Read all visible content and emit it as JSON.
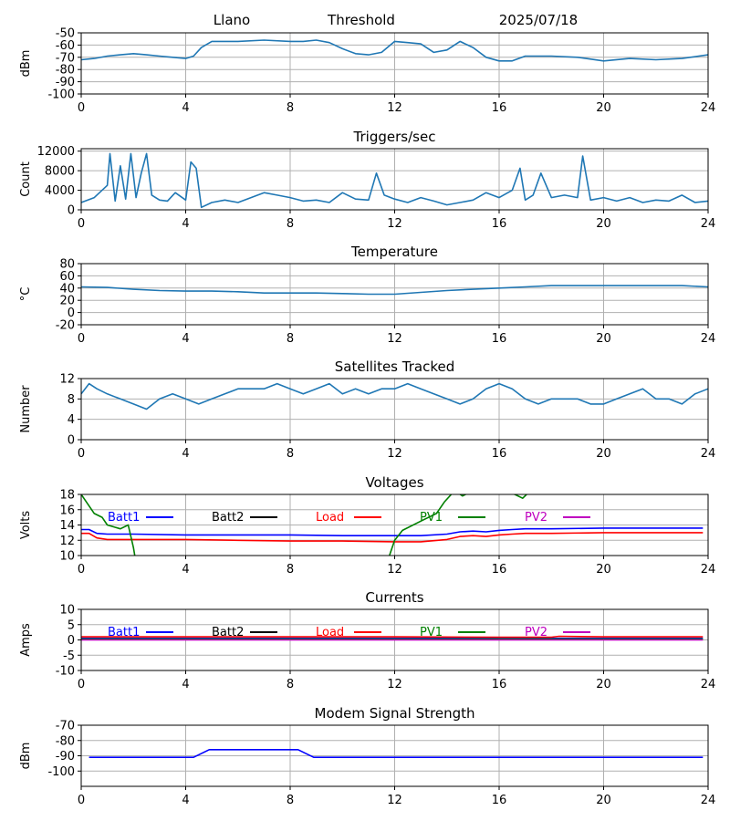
{
  "header": {
    "site": "Llano",
    "mode": "Threshold",
    "date": "2025/07/18"
  },
  "x_ticks": [
    "0",
    "4",
    "8",
    "12",
    "16",
    "20",
    "24"
  ],
  "colors": {
    "default_line": "#1f77b4",
    "grid": "#b0b0b0",
    "blue": "#0000ff",
    "black": "#000000",
    "red": "#ff0000",
    "green": "#008000",
    "magenta": "#bf00bf"
  },
  "chart_data": [
    {
      "type": "line",
      "title": "",
      "ylabel": "dBm",
      "ylim": [
        -100,
        -50
      ],
      "yticks": [
        "-50",
        "-60",
        "-70",
        "-80",
        "-90",
        "-100"
      ],
      "xlim": [
        0,
        24
      ],
      "series": [
        {
          "color": "#1f77b4",
          "x": [
            0,
            0.5,
            1,
            1.5,
            2,
            2.5,
            3,
            3.5,
            4,
            4.3,
            4.6,
            5,
            6,
            7,
            8,
            8.5,
            9,
            9.5,
            10,
            10.5,
            11,
            11.5,
            12,
            12.5,
            13,
            13.5,
            14,
            14.5,
            15,
            15.5,
            16,
            16.5,
            17,
            18,
            19,
            20,
            21,
            22,
            23,
            24
          ],
          "y": [
            -72,
            -71,
            -69,
            -68,
            -67,
            -68,
            -69,
            -70,
            -71,
            -69,
            -62,
            -57,
            -57,
            -56,
            -57,
            -57,
            -56,
            -58,
            -63,
            -67,
            -68,
            -66,
            -57,
            -58,
            -59,
            -66,
            -64,
            -57,
            -62,
            -70,
            -73,
            -73,
            -69,
            -69,
            -70,
            -73,
            -71,
            -72,
            -71,
            -68
          ]
        }
      ]
    },
    {
      "type": "line",
      "title": "Triggers/sec",
      "ylabel": "Count",
      "ylim": [
        0,
        12500
      ],
      "yticks": [
        "0",
        "4000",
        "8000",
        "12000"
      ],
      "xlim": [
        0,
        24
      ],
      "series": [
        {
          "color": "#1f77b4",
          "x": [
            0,
            0.5,
            1,
            1.1,
            1.3,
            1.5,
            1.7,
            1.9,
            2.1,
            2.3,
            2.5,
            2.7,
            3,
            3.3,
            3.6,
            4,
            4.2,
            4.4,
            4.6,
            5,
            5.5,
            6,
            6.5,
            7,
            7.5,
            8,
            8.5,
            9,
            9.5,
            10,
            10.5,
            11,
            11.3,
            11.6,
            12,
            12.5,
            13,
            13.5,
            14,
            14.5,
            15,
            15.5,
            16,
            16.5,
            16.8,
            17,
            17.3,
            17.6,
            18,
            18.5,
            19,
            19.2,
            19.5,
            20,
            20.5,
            21,
            21.5,
            22,
            22.5,
            23,
            23.5,
            24
          ],
          "y": [
            1500,
            2500,
            5000,
            11500,
            1800,
            9000,
            2200,
            11500,
            2500,
            7500,
            11500,
            3000,
            2000,
            1800,
            3500,
            2000,
            9800,
            8500,
            500,
            1500,
            2000,
            1500,
            2500,
            3500,
            3000,
            2500,
            1800,
            2000,
            1500,
            3500,
            2200,
            2000,
            7500,
            3000,
            2200,
            1500,
            2500,
            1800,
            1000,
            1500,
            2000,
            3500,
            2500,
            4000,
            8500,
            2000,
            3000,
            7500,
            2500,
            3000,
            2500,
            11000,
            2000,
            2500,
            1800,
            2500,
            1500,
            2000,
            1800,
            3000,
            1500,
            1800
          ]
        }
      ]
    },
    {
      "type": "line",
      "title": "Temperature",
      "ylabel": "°C",
      "ylim": [
        -20,
        80
      ],
      "yticks": [
        "80",
        "60",
        "40",
        "20",
        "0",
        "-20"
      ],
      "xlim": [
        0,
        24
      ],
      "series": [
        {
          "color": "#1f77b4",
          "x": [
            0,
            1,
            2,
            3,
            4,
            5,
            6,
            7,
            8,
            9,
            10,
            11,
            12,
            13,
            14,
            15,
            16,
            17,
            18,
            19,
            20,
            21,
            22,
            23,
            24
          ],
          "y": [
            42,
            41,
            38,
            36,
            35,
            35,
            34,
            32,
            32,
            32,
            31,
            30,
            30,
            33,
            36,
            38,
            40,
            42,
            44,
            44,
            44,
            44,
            44,
            44,
            42
          ]
        }
      ]
    },
    {
      "type": "line",
      "title": "Satellites Tracked",
      "ylabel": "Number",
      "ylim": [
        0,
        12
      ],
      "yticks": [
        "0",
        "4",
        "8",
        "12"
      ],
      "xlim": [
        0,
        24
      ],
      "series": [
        {
          "color": "#1f77b4",
          "x": [
            0,
            0.3,
            0.6,
            1,
            1.5,
            2,
            2.5,
            3,
            3.5,
            4,
            4.5,
            5,
            5.5,
            6,
            6.5,
            7,
            7.5,
            8,
            8.5,
            9,
            9.5,
            10,
            10.5,
            11,
            11.5,
            12,
            12.5,
            13,
            13.5,
            14,
            14.5,
            15,
            15.5,
            16,
            16.5,
            17,
            17.5,
            18,
            18.5,
            19,
            19.5,
            20,
            20.5,
            21,
            21.5,
            22,
            22.5,
            23,
            23.5,
            24
          ],
          "y": [
            9,
            11,
            10,
            9,
            8,
            7,
            6,
            8,
            9,
            8,
            7,
            8,
            9,
            10,
            10,
            10,
            11,
            10,
            9,
            10,
            11,
            9,
            10,
            9,
            10,
            10,
            11,
            10,
            9,
            8,
            7,
            8,
            10,
            11,
            10,
            8,
            7,
            8,
            8,
            8,
            7,
            7,
            8,
            9,
            10,
            8,
            8,
            7,
            9,
            10
          ]
        }
      ]
    },
    {
      "type": "line",
      "title": "Voltages",
      "ylabel": "Volts",
      "ylim": [
        10,
        18
      ],
      "yticks": [
        "10",
        "12",
        "14",
        "16",
        "18"
      ],
      "xlim": [
        0,
        24
      ],
      "legend": [
        "Batt1",
        "Batt2",
        "Load",
        "PV1",
        "PV2"
      ],
      "series": [
        {
          "name": "Batt1",
          "color": "#0000ff",
          "x": [
            0,
            0.3,
            0.6,
            1,
            2,
            4,
            6,
            8,
            10,
            12,
            13,
            14,
            14.5,
            15,
            15.5,
            16,
            16.5,
            17,
            18,
            20,
            22,
            23.8
          ],
          "y": [
            13.4,
            13.4,
            12.9,
            12.8,
            12.8,
            12.7,
            12.7,
            12.7,
            12.6,
            12.6,
            12.6,
            12.8,
            13.1,
            13.2,
            13.1,
            13.3,
            13.4,
            13.5,
            13.5,
            13.6,
            13.6,
            13.6
          ]
        },
        {
          "name": "Load",
          "color": "#ff0000",
          "x": [
            0,
            0.3,
            0.6,
            1,
            2,
            4,
            6,
            8,
            10,
            12,
            13,
            14,
            14.5,
            15,
            15.5,
            16,
            16.5,
            17,
            18,
            20,
            22,
            23.8
          ],
          "y": [
            12.9,
            12.9,
            12.3,
            12.1,
            12.1,
            12.1,
            12.0,
            11.9,
            11.9,
            11.8,
            11.8,
            12.1,
            12.5,
            12.6,
            12.5,
            12.7,
            12.8,
            12.9,
            12.9,
            13.0,
            13.0,
            13.0
          ]
        },
        {
          "name": "PV1",
          "color": "#008000",
          "x": [
            0,
            0.5,
            0.8,
            1,
            1.5,
            1.8,
            2.0,
            2.1,
            11.7,
            12.0,
            12.3,
            13,
            13.6,
            13.9,
            14.3,
            14.6,
            15,
            16,
            16.6,
            16.9,
            17.2
          ],
          "y": [
            18,
            15.5,
            15,
            14,
            13.5,
            14,
            11,
            9,
            9,
            12,
            13.3,
            14.5,
            15.5,
            17,
            18.5,
            17.8,
            18.5,
            18.5,
            18,
            17.5,
            18.5
          ]
        },
        {
          "name": "Batt2",
          "color": "#000000",
          "x": [],
          "y": []
        },
        {
          "name": "PV2",
          "color": "#bf00bf",
          "x": [],
          "y": []
        }
      ]
    },
    {
      "type": "line",
      "title": "Currents",
      "ylabel": "Amps",
      "ylim": [
        -10,
        10
      ],
      "yticks": [
        "10",
        "5",
        "0",
        "-5",
        "-10"
      ],
      "xlim": [
        0,
        24
      ],
      "legend": [
        "Batt1",
        "Batt2",
        "Load",
        "PV1",
        "PV2"
      ],
      "series": [
        {
          "name": "Batt1",
          "color": "#0000ff",
          "x": [
            0,
            23.8
          ],
          "y": [
            0.5,
            0.5
          ]
        },
        {
          "name": "Load",
          "color": "#ff0000",
          "x": [
            0,
            4,
            8,
            12,
            16,
            18,
            18.3,
            20,
            23.8
          ],
          "y": [
            1.0,
            1.0,
            1.0,
            1.0,
            0.9,
            0.9,
            1.2,
            1.0,
            1.0
          ]
        },
        {
          "name": "PV1",
          "color": "#008000",
          "x": [
            0,
            23.8
          ],
          "y": [
            0.3,
            0.3
          ]
        },
        {
          "name": "PV2",
          "color": "#bf00bf",
          "x": [
            0,
            23.8
          ],
          "y": [
            0.0,
            0.0
          ]
        },
        {
          "name": "Batt2",
          "color": "#000000",
          "x": [],
          "y": []
        }
      ]
    },
    {
      "type": "line",
      "title": "Modem Signal Strength",
      "ylabel": "dBm",
      "ylim": [
        -110,
        -70
      ],
      "yticks": [
        "-70",
        "-80",
        "-90",
        "-100"
      ],
      "xlim": [
        0,
        24
      ],
      "series": [
        {
          "color": "#0000ff",
          "x": [
            0.3,
            4.3,
            4.9,
            8.3,
            8.9,
            23.8
          ],
          "y": [
            -91,
            -91,
            -86,
            -86,
            -91,
            -91
          ]
        }
      ]
    }
  ]
}
